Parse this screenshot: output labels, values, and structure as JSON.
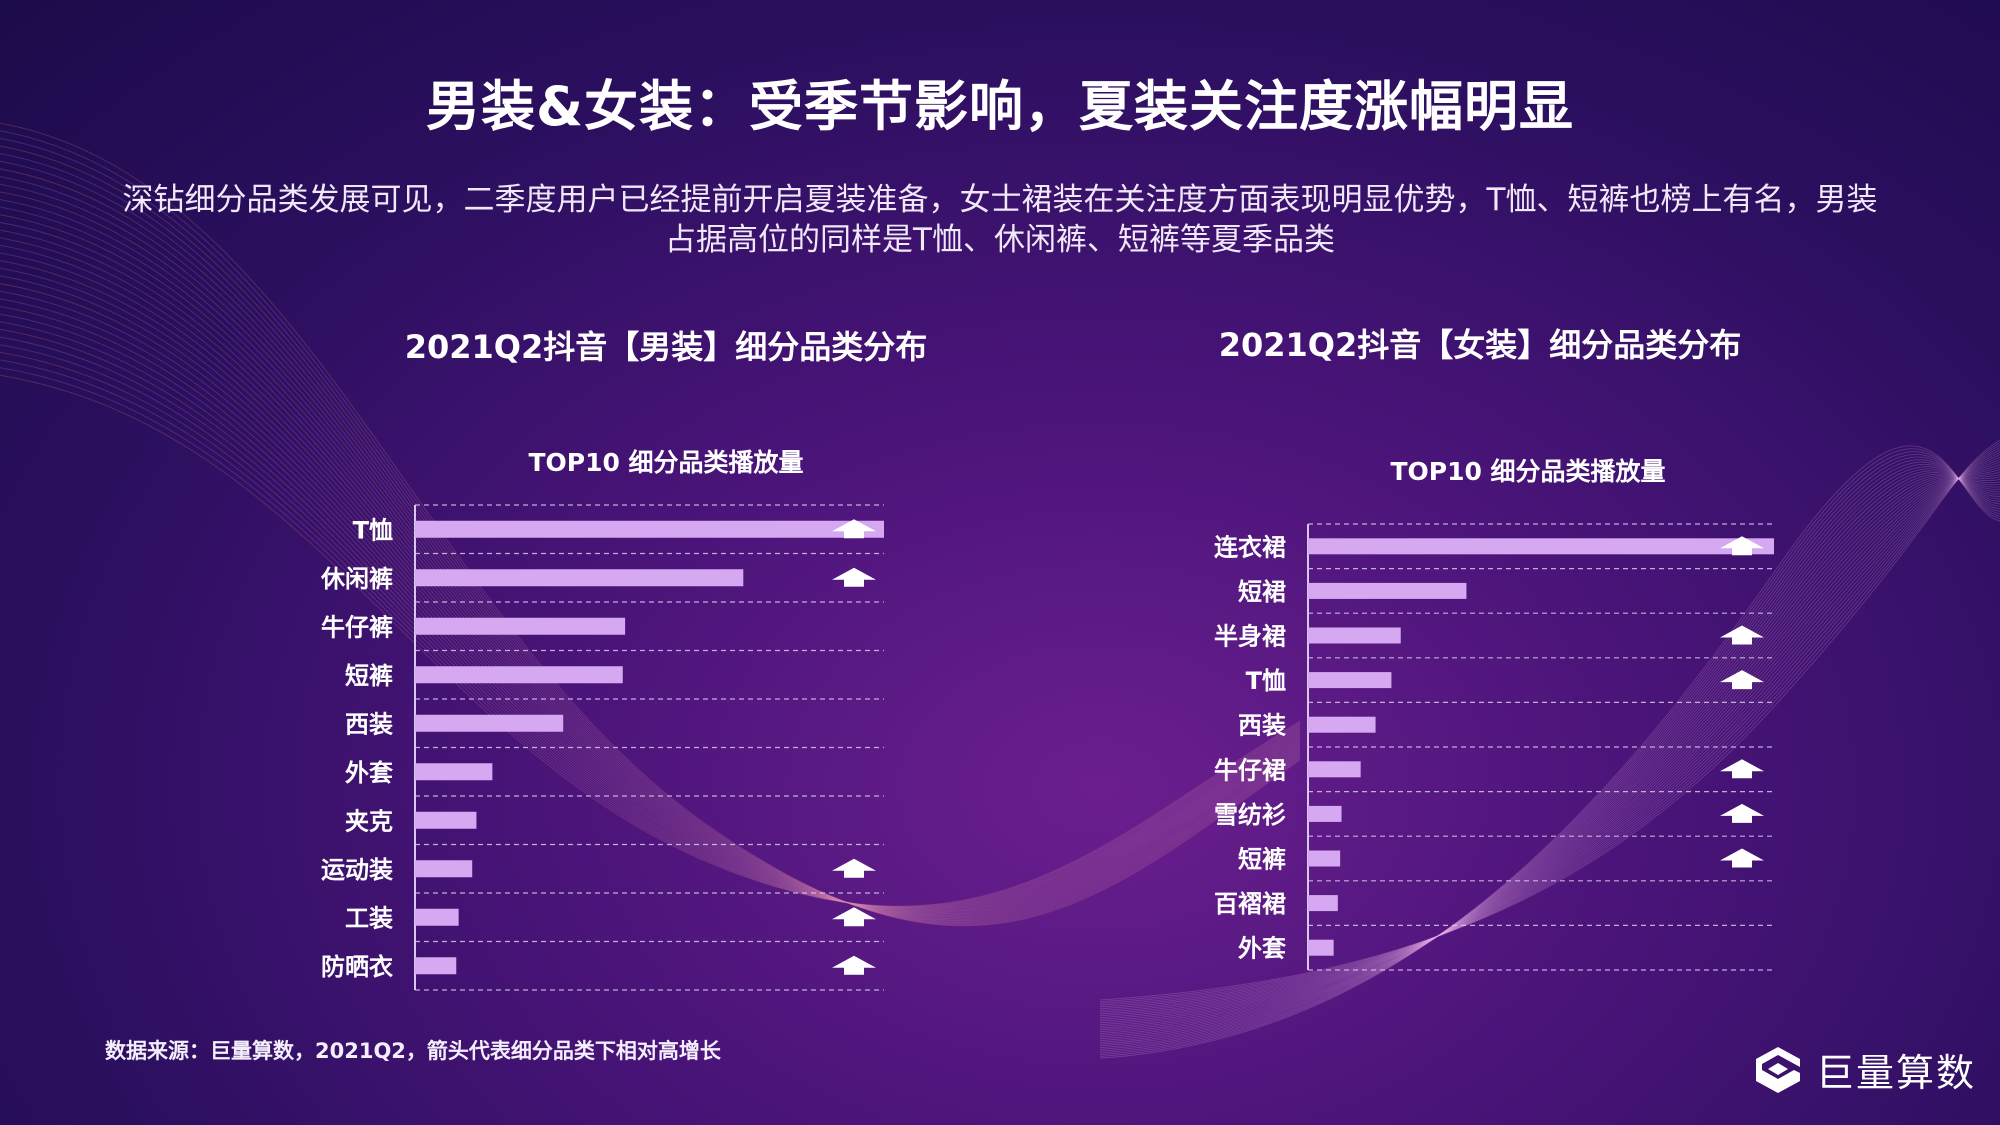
{
  "page": {
    "title": "男装&女装：受季节影响，夏装关注度涨幅明显",
    "subtitle": "深钻细分品类发展可见，二季度用户已经提前开启夏装准备，女士裙装在关注度方面表现明显优势，T恤、短裤也榜上有名，男装占据高位的同样是T恤、休闲裤、短裤等夏季品类",
    "footer": "数据来源：巨量算数，2021Q2，箭头代表细分品类下相对高增长",
    "logo_text": "巨量算数"
  },
  "colors": {
    "bar": "#d6a8f2",
    "arrow": "#ffffff",
    "axis": "#d8c8f0"
  },
  "chart_data": [
    {
      "type": "bar",
      "orientation": "horizontal",
      "title": "2021Q2抖音【男装】细分品类分布",
      "subtitle": "TOP10 细分品类播放量",
      "categories": [
        "T恤",
        "休闲裤",
        "牛仔裤",
        "短裤",
        "西装",
        "外套",
        "夹克",
        "运动装",
        "工装",
        "防晒衣"
      ],
      "values": [
        100,
        70,
        44.8,
        44.3,
        31.6,
        16.5,
        13.1,
        12.2,
        9.3,
        8.8
      ],
      "high_growth": [
        true,
        true,
        false,
        false,
        false,
        false,
        false,
        true,
        true,
        true
      ],
      "xlim": [
        0,
        100
      ],
      "grid": true,
      "x_axis_labels_shown": false
    },
    {
      "type": "bar",
      "orientation": "horizontal",
      "title": "2021Q2抖音【女装】细分品类分布",
      "subtitle": "TOP10 细分品类播放量",
      "categories": [
        "连衣裙",
        "短裙",
        "半身裙",
        "T恤",
        "西装",
        "牛仔裙",
        "雪纺衫",
        "短裤",
        "百褶裙",
        "外套"
      ],
      "values": [
        100,
        34,
        19.9,
        17.9,
        14.5,
        11.3,
        7.2,
        6.9,
        6.4,
        5.5
      ],
      "high_growth": [
        true,
        false,
        true,
        true,
        false,
        true,
        true,
        true,
        false,
        false
      ],
      "xlim": [
        0,
        100
      ],
      "grid": true,
      "x_axis_labels_shown": false
    }
  ]
}
